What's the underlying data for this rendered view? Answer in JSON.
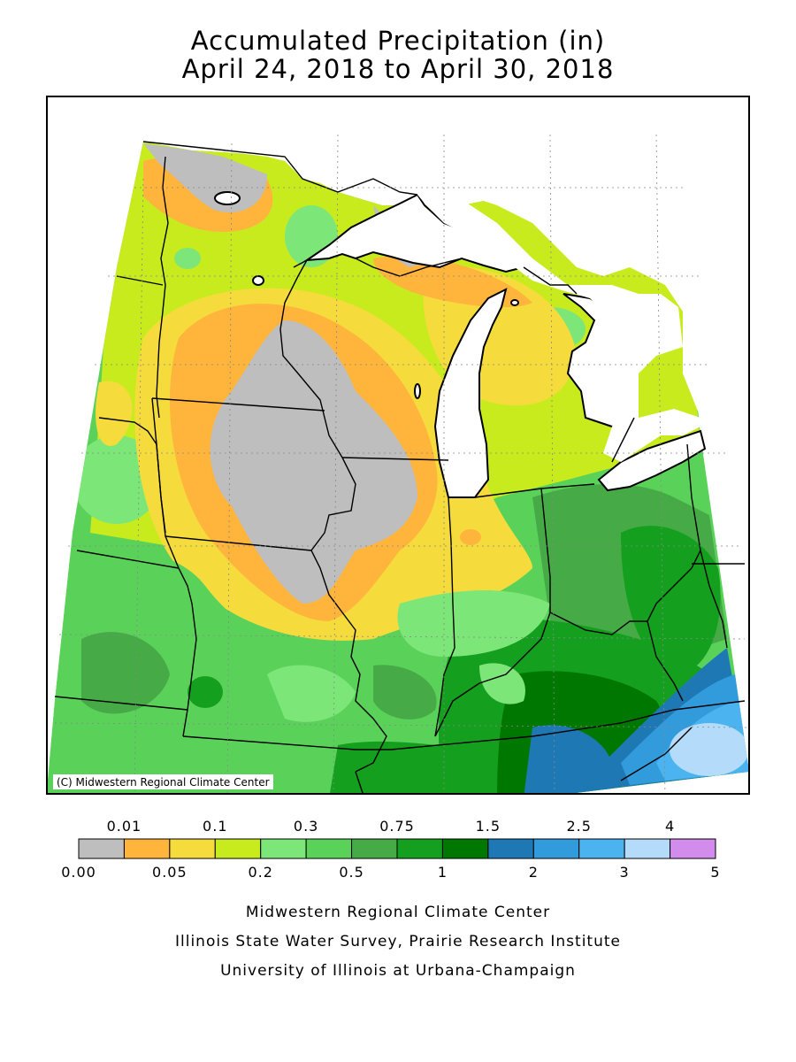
{
  "title": {
    "line1": "Accumulated Precipitation (in)",
    "line2": "April 24, 2018 to April 30, 2018"
  },
  "map": {
    "copyright": "(C) Midwestern Regional Climate Center",
    "regions": [
      {
        "name": "dry-core-iowa",
        "class": "0.00-0.01"
      },
      {
        "name": "northwest-dry-spot",
        "class": "0.00-0.01"
      },
      {
        "name": "upper-michigan-dry",
        "class": "0.00-0.01"
      },
      {
        "name": "southeast-appalachia",
        "class": "2.5-3"
      },
      {
        "name": "lower-ohio-valley",
        "class": "1.5-2"
      }
    ]
  },
  "legend": {
    "top_labels": [
      "0.01",
      "0.1",
      "0.3",
      "0.75",
      "1.5",
      "2.5",
      "4"
    ],
    "bottom_labels": [
      "0.00",
      "0.05",
      "0.2",
      "0.5",
      "1",
      "2",
      "3",
      "5"
    ],
    "colors": [
      "#bebebe",
      "#ffb43c",
      "#f5dc3c",
      "#c8eb1e",
      "#7de678",
      "#5ad25a",
      "#46aa46",
      "#14a01e",
      "#007800",
      "#1e78b4",
      "#329bdc",
      "#4bb4f0",
      "#b4dcfa",
      "#d28ceb"
    ]
  },
  "footer": {
    "line1": "Midwestern Regional Climate Center",
    "line2": "Illinois State Water Survey, Prairie Research Institute",
    "line3": "University of Illinois at Urbana-Champaign"
  }
}
